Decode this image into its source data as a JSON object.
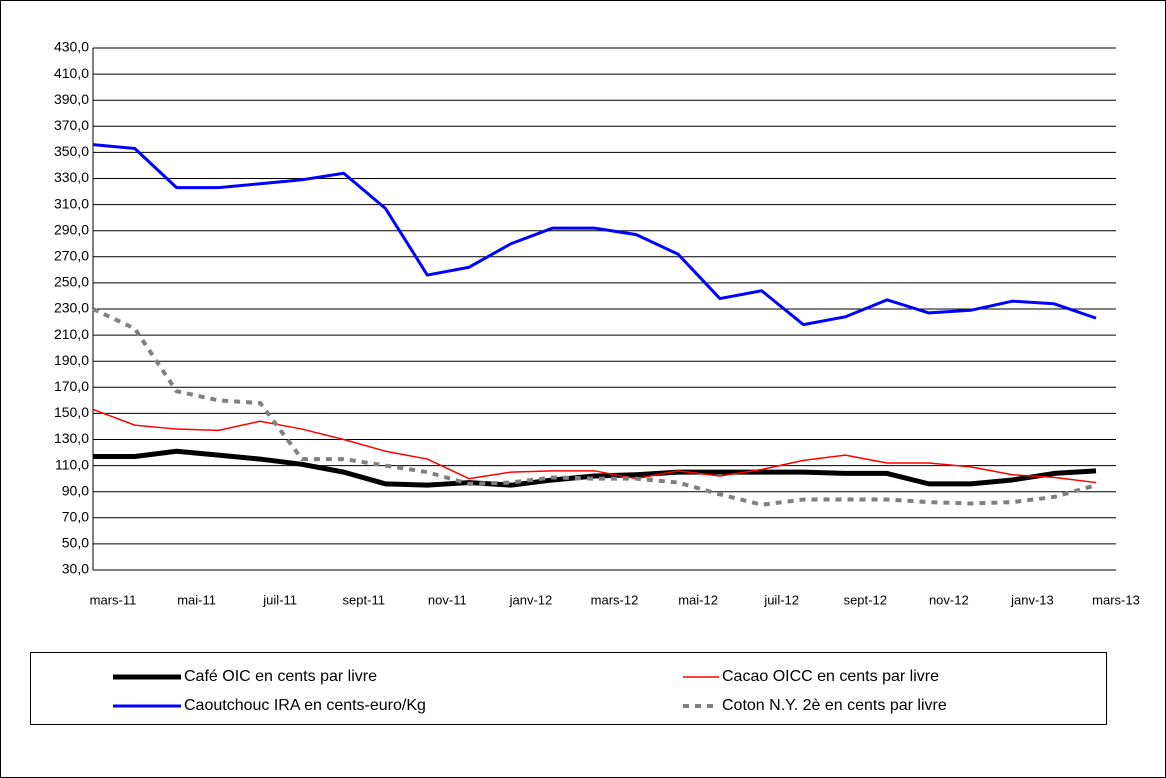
{
  "chart_data": {
    "type": "line",
    "categories": [
      "mars-11",
      null,
      "mai-11",
      null,
      "juil-11",
      null,
      "sept-11",
      null,
      "nov-11",
      null,
      "janv-12",
      null,
      "mars-12",
      null,
      "mai-12",
      null,
      "juil-12",
      null,
      "sept-12",
      null,
      "nov-12",
      null,
      "janv-13",
      null,
      "mars-13"
    ],
    "ylim": [
      30,
      430
    ],
    "yticks": [
      {
        "value": 30,
        "label": "30,0"
      },
      {
        "value": 50,
        "label": "50,0"
      },
      {
        "value": 70,
        "label": "70,0"
      },
      {
        "value": 90,
        "label": "90,0"
      },
      {
        "value": 110,
        "label": "110,0"
      },
      {
        "value": 130,
        "label": "130,0"
      },
      {
        "value": 150,
        "label": "150,0"
      },
      {
        "value": 170,
        "label": "170,0"
      },
      {
        "value": 190,
        "label": "190,0"
      },
      {
        "value": 210,
        "label": "210,0"
      },
      {
        "value": 230,
        "label": "230,0"
      },
      {
        "value": 250,
        "label": "250,0"
      },
      {
        "value": 270,
        "label": "270,0"
      },
      {
        "value": 290,
        "label": "290,0"
      },
      {
        "value": 310,
        "label": "310,0"
      },
      {
        "value": 330,
        "label": "330,0"
      },
      {
        "value": 350,
        "label": "350,0"
      },
      {
        "value": 370,
        "label": "370,0"
      },
      {
        "value": 390,
        "label": "390,0"
      },
      {
        "value": 410,
        "label": "410,0"
      },
      {
        "value": 430,
        "label": "430,0"
      }
    ],
    "grid": true,
    "series": [
      {
        "name": "Café  OIC en cents par livre",
        "color": "#000000",
        "width": 5,
        "dash": false,
        "values": [
          117,
          117,
          121,
          118,
          115,
          111,
          105,
          96,
          95,
          97,
          95,
          99,
          102,
          103,
          105,
          105,
          105,
          105,
          104,
          104,
          96,
          96,
          99,
          104,
          106
        ]
      },
      {
        "name": "Cacao OICC en cents par livre",
        "color": "#ff0000",
        "width": 1.5,
        "dash": false,
        "values": [
          153,
          141,
          138,
          137,
          144,
          138,
          130,
          121,
          115,
          100,
          105,
          106,
          106,
          100,
          106,
          102,
          107,
          114,
          118,
          112,
          112,
          109,
          103,
          101,
          97
        ]
      },
      {
        "name": "Caoutchouc IRA en cents-euro/Kg",
        "color": "#0000ff",
        "width": 3,
        "dash": false,
        "values": [
          356,
          353,
          323,
          323,
          326,
          329,
          334,
          307,
          256,
          262,
          280,
          292,
          292,
          287,
          272,
          238,
          244,
          218,
          224,
          237,
          227,
          229,
          236,
          234,
          223
        ]
      },
      {
        "name": "Coton N.Y. 2è en cents par livre",
        "color": "#808080",
        "width": 4,
        "dash": true,
        "values": [
          230,
          215,
          167,
          160,
          158,
          115,
          115,
          110,
          105,
          96,
          97,
          101,
          100,
          100,
          97,
          88,
          80,
          84,
          84,
          84,
          82,
          81,
          82,
          86,
          95
        ]
      }
    ]
  }
}
